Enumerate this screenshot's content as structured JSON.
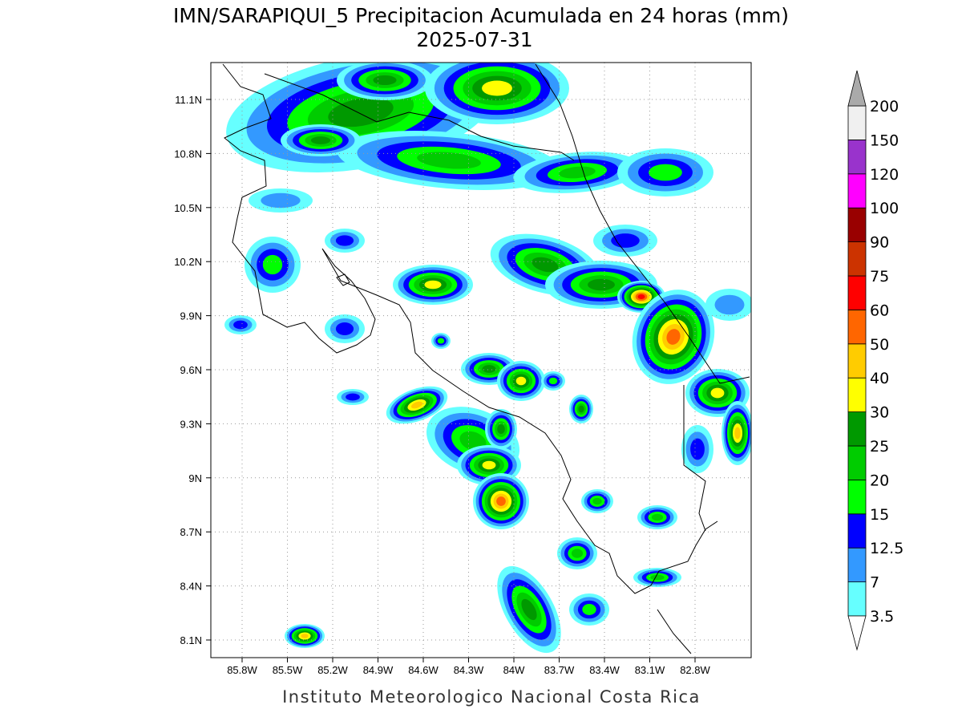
{
  "title": "IMN/SARAPIQUI_5 Precipitacion Acumulada en 24 horas (mm)",
  "date": "2025-07-31",
  "footer": "Instituto Meteorologico Nacional Costa Rica",
  "map": {
    "lat_labels": [
      "11.1N",
      "10.8N",
      "10.5N",
      "10.2N",
      "9.9N",
      "9.6N",
      "9.3N",
      "9N",
      "8.7N",
      "8.4N",
      "8.1N"
    ],
    "lon_labels": [
      "85.8W",
      "85.5W",
      "85.2W",
      "84.9W",
      "84.6W",
      "84.3W",
      "84W",
      "83.7W",
      "83.4W",
      "83.1W",
      "82.8W"
    ],
    "grid": true
  },
  "colorbar": {
    "levels": [
      3.5,
      7,
      12.5,
      15,
      20,
      25,
      30,
      40,
      50,
      60,
      75,
      90,
      100,
      120,
      150,
      200
    ],
    "colors": [
      "#66ffff",
      "#3399ff",
      "#0000ff",
      "#00ff00",
      "#00cc00",
      "#009900",
      "#ffff00",
      "#ffcc00",
      "#ff6600",
      "#ff0000",
      "#cc3300",
      "#990000",
      "#ff00ff",
      "#9933cc",
      "#f0f0f0"
    ],
    "under_color": "#ffffff",
    "over_color": "#aaaaaa"
  }
}
